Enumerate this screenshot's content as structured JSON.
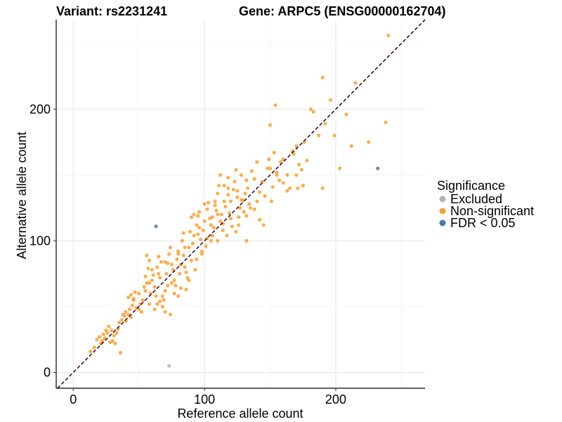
{
  "header": {
    "left": "Variant: rs2231241",
    "right": "Gene: ARPC5 (ENSG00000162704)"
  },
  "chart_data": {
    "type": "scatter",
    "xlabel": "Reference allele count",
    "ylabel": "Alternative allele count",
    "xlim": [
      -13,
      268
    ],
    "ylim": [
      -12,
      268
    ],
    "xticks": [
      0,
      100,
      200
    ],
    "yticks": [
      0,
      100,
      200
    ],
    "grid": true,
    "reference_line": {
      "style": "dashed",
      "slope": 1,
      "intercept": 0,
      "color": "#3b0a1e"
    },
    "legend": {
      "title": "Significance",
      "position": "right",
      "entries": [
        {
          "label": "Excluded",
          "color": "#b3b3b3"
        },
        {
          "label": "Non-significant",
          "color": "#f6a13a"
        },
        {
          "label": "FDR < 0.05",
          "color": "#4a78aa"
        }
      ]
    },
    "series": [
      {
        "name": "Excluded",
        "color": "#b3b3b3",
        "points": [
          [
            73,
            5
          ]
        ]
      },
      {
        "name": "FDR < 0.05",
        "color": "#4a78aa",
        "points": [
          [
            63,
            111
          ],
          [
            232,
            155
          ]
        ]
      },
      {
        "name": "Non-significant",
        "color": "#f6a13a",
        "points": [
          [
            13,
            16
          ],
          [
            16,
            19
          ],
          [
            18,
            25
          ],
          [
            20,
            27
          ],
          [
            22,
            24
          ],
          [
            23,
            29
          ],
          [
            25,
            32
          ],
          [
            26,
            30
          ],
          [
            27,
            35
          ],
          [
            28,
            23
          ],
          [
            30,
            24
          ],
          [
            31,
            28
          ],
          [
            32,
            22
          ],
          [
            34,
            33
          ],
          [
            35,
            38
          ],
          [
            36,
            15
          ],
          [
            37,
            40
          ],
          [
            38,
            44
          ],
          [
            40,
            46
          ],
          [
            40,
            39
          ],
          [
            42,
            44
          ],
          [
            43,
            48
          ],
          [
            44,
            42
          ],
          [
            45,
            51
          ],
          [
            46,
            55
          ],
          [
            44,
            59
          ],
          [
            42,
            57
          ],
          [
            47,
            61
          ],
          [
            50,
            48
          ],
          [
            51,
            52
          ],
          [
            52,
            46
          ],
          [
            53,
            55
          ],
          [
            54,
            65
          ],
          [
            55,
            73
          ],
          [
            56,
            68
          ],
          [
            57,
            79
          ],
          [
            58,
            85
          ],
          [
            56,
            89
          ],
          [
            59,
            60
          ],
          [
            60,
            70
          ],
          [
            61,
            74
          ],
          [
            62,
            65
          ],
          [
            63,
            58
          ],
          [
            64,
            80
          ],
          [
            65,
            88
          ],
          [
            66,
            72
          ],
          [
            67,
            84
          ],
          [
            68,
            50
          ],
          [
            69,
            55
          ],
          [
            70,
            62
          ],
          [
            71,
            75
          ],
          [
            72,
            83
          ],
          [
            73,
            90
          ],
          [
            74,
            95
          ],
          [
            75,
            68
          ],
          [
            76,
            78
          ],
          [
            77,
            70
          ],
          [
            78,
            66
          ],
          [
            79,
            86
          ],
          [
            80,
            92
          ],
          [
            81,
            75
          ],
          [
            82,
            82
          ],
          [
            83,
            100
          ],
          [
            84,
            89
          ],
          [
            85,
            80
          ],
          [
            86,
            63
          ],
          [
            87,
            72
          ],
          [
            88,
            95
          ],
          [
            89,
            107
          ],
          [
            90,
            85
          ],
          [
            91,
            98
          ],
          [
            92,
            104
          ],
          [
            93,
            78
          ],
          [
            94,
            112
          ],
          [
            95,
            119
          ],
          [
            96,
            122
          ],
          [
            97,
            101
          ],
          [
            98,
            90
          ],
          [
            99,
            108
          ],
          [
            100,
            115
          ],
          [
            101,
            96
          ],
          [
            102,
            124
          ],
          [
            103,
            129
          ],
          [
            104,
            117
          ],
          [
            105,
            100
          ],
          [
            106,
            118
          ],
          [
            107,
            110
          ],
          [
            108,
            127
          ],
          [
            109,
            123
          ],
          [
            110,
            136
          ],
          [
            111,
            142
          ],
          [
            112,
            115
          ],
          [
            113,
            120
          ],
          [
            114,
            113
          ],
          [
            115,
            130
          ],
          [
            116,
            126
          ],
          [
            117,
            104
          ],
          [
            118,
            135
          ],
          [
            119,
            121
          ],
          [
            120,
            117
          ],
          [
            121,
            111
          ],
          [
            122,
            139
          ],
          [
            123,
            145
          ],
          [
            124,
            107
          ],
          [
            125,
            133
          ],
          [
            126,
            118
          ],
          [
            127,
            125
          ],
          [
            128,
            150
          ],
          [
            129,
            131
          ],
          [
            130,
            122
          ],
          [
            131,
            136
          ],
          [
            132,
            119
          ],
          [
            133,
            140
          ],
          [
            134,
            128
          ],
          [
            136,
            153
          ],
          [
            138,
            147
          ],
          [
            140,
            160
          ],
          [
            142,
            137
          ],
          [
            144,
            145
          ],
          [
            145,
            112
          ],
          [
            148,
            155
          ],
          [
            150,
            188
          ],
          [
            152,
            141
          ],
          [
            153,
            167
          ],
          [
            154,
            203
          ],
          [
            155,
            150
          ],
          [
            157,
            146
          ],
          [
            158,
            160
          ],
          [
            160,
            144
          ],
          [
            163,
            150
          ],
          [
            165,
            140
          ],
          [
            167,
            168
          ],
          [
            168,
            166
          ],
          [
            170,
            172
          ],
          [
            172,
            158
          ],
          [
            174,
            154
          ],
          [
            176,
            175
          ],
          [
            178,
            161
          ],
          [
            181,
            200
          ],
          [
            183,
            198
          ],
          [
            187,
            180
          ],
          [
            190,
            140
          ],
          [
            192,
            189
          ],
          [
            196,
            207
          ],
          [
            199,
            180
          ],
          [
            203,
            155
          ],
          [
            215,
            220
          ],
          [
            225,
            175
          ],
          [
            238,
            190
          ],
          [
            240,
            256
          ],
          [
            190,
            224
          ],
          [
            208,
            196
          ],
          [
            212,
            172
          ],
          [
            171,
            140
          ],
          [
            170,
            150
          ],
          [
            160,
            162
          ],
          [
            150,
            155
          ],
          [
            140,
            130
          ],
          [
            135,
            125
          ],
          [
            125,
            138
          ],
          [
            120,
            130
          ],
          [
            118,
            140
          ],
          [
            115,
            142
          ],
          [
            110,
            120
          ],
          [
            105,
            112
          ],
          [
            95,
            105
          ],
          [
            90,
            118
          ],
          [
            85,
            95
          ],
          [
            80,
            90
          ],
          [
            75,
            82
          ],
          [
            70,
            84
          ],
          [
            65,
            75
          ],
          [
            60,
            78
          ],
          [
            58,
            68
          ],
          [
            55,
            62
          ],
          [
            50,
            60
          ],
          [
            48,
            49
          ],
          [
            46,
            56
          ],
          [
            39,
            43
          ],
          [
            33,
            30
          ],
          [
            29,
            32
          ],
          [
            24,
            26
          ],
          [
            21,
            22
          ],
          [
            84,
            106
          ],
          [
            92,
            120
          ],
          [
            100,
            128
          ],
          [
            108,
            130
          ],
          [
            112,
            150
          ],
          [
            118,
            148
          ],
          [
            124,
            154
          ],
          [
            128,
            131
          ],
          [
            132,
            146
          ],
          [
            96,
            110
          ],
          [
            86,
            76
          ],
          [
            77,
            60
          ],
          [
            66,
            54
          ],
          [
            72,
            66
          ],
          [
            80,
            58
          ],
          [
            82,
            64
          ],
          [
            88,
            70
          ],
          [
            94,
            86
          ],
          [
            98,
            92
          ],
          [
            102,
            102
          ],
          [
            106,
            104
          ],
          [
            110,
            100
          ],
          [
            114,
            108
          ],
          [
            126,
            112
          ],
          [
            132,
            100
          ],
          [
            138,
            124
          ],
          [
            142,
            116
          ],
          [
            146,
            134
          ],
          [
            149,
            162
          ],
          [
            151,
            130
          ],
          [
            155,
            152
          ],
          [
            163,
            138
          ],
          [
            175,
            142
          ],
          [
            70,
            46
          ],
          [
            62,
            48
          ],
          [
            58,
            52
          ],
          [
            64,
            52
          ],
          [
            68,
            58
          ],
          [
            74,
            44
          ]
        ]
      }
    ]
  }
}
